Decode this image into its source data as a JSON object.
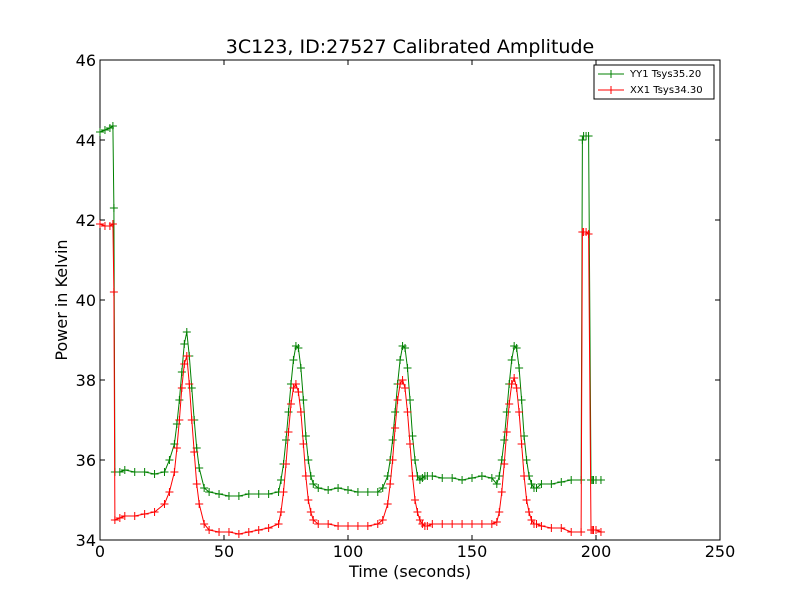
{
  "chart_data": {
    "type": "line",
    "title": "3C123, ID:27527 Calibrated Amplitude",
    "xlabel": "Time (seconds)",
    "ylabel": "Power in Kelvin",
    "xlim": [
      0,
      250
    ],
    "ylim": [
      34,
      46
    ],
    "xticks": [
      0,
      50,
      100,
      150,
      200,
      250
    ],
    "yticks": [
      34,
      36,
      38,
      40,
      42,
      44,
      46
    ],
    "grid": false,
    "legend_position": "top-right",
    "marker": "+",
    "series": [
      {
        "name": "YY1 Tsys35.20",
        "color": "#008000",
        "x": [
          0,
          2,
          4,
          5.2,
          5.6,
          6,
          8,
          10,
          14,
          18,
          22,
          26,
          28,
          30,
          31,
          32,
          33,
          34,
          35,
          36,
          37,
          38,
          39,
          40,
          42,
          44,
          48,
          52,
          56,
          60,
          64,
          68,
          72,
          73,
          74,
          75,
          76,
          77,
          78,
          79,
          80,
          81,
          82,
          83,
          84,
          85,
          86,
          88,
          92,
          96,
          100,
          104,
          108,
          112,
          114,
          116,
          117,
          118,
          119,
          120,
          121,
          122,
          123,
          124,
          125,
          126,
          127,
          128,
          129,
          130,
          131,
          132,
          134,
          138,
          142,
          146,
          150,
          154,
          158,
          160,
          161,
          162,
          163,
          164,
          165,
          166,
          167,
          168,
          169,
          170,
          171,
          172,
          173,
          174,
          175,
          176,
          178,
          182,
          186,
          190,
          194,
          194.5,
          195,
          196,
          197,
          198,
          198.5,
          199,
          200,
          202
        ],
        "y": [
          44.2,
          44.25,
          44.3,
          44.35,
          42.3,
          35.7,
          35.7,
          35.75,
          35.7,
          35.7,
          35.65,
          35.7,
          36.0,
          36.4,
          36.9,
          37.5,
          38.2,
          38.9,
          39.2,
          38.6,
          37.8,
          37.0,
          36.3,
          35.8,
          35.3,
          35.2,
          35.15,
          35.1,
          35.1,
          35.15,
          35.15,
          35.15,
          35.2,
          35.5,
          35.9,
          36.5,
          37.2,
          37.9,
          38.5,
          38.85,
          38.8,
          38.3,
          37.5,
          36.6,
          36.0,
          35.6,
          35.4,
          35.3,
          35.25,
          35.3,
          35.25,
          35.2,
          35.2,
          35.2,
          35.3,
          35.6,
          36.0,
          36.5,
          37.2,
          37.9,
          38.5,
          38.85,
          38.8,
          38.3,
          37.5,
          36.6,
          36.0,
          35.6,
          35.5,
          35.55,
          35.6,
          35.6,
          35.6,
          35.55,
          35.55,
          35.5,
          35.55,
          35.6,
          35.55,
          35.4,
          35.6,
          36.0,
          36.5,
          37.2,
          37.9,
          38.5,
          38.85,
          38.8,
          38.3,
          37.5,
          36.6,
          36.0,
          35.6,
          35.4,
          35.3,
          35.3,
          35.4,
          35.4,
          35.45,
          35.5,
          35.5,
          44.0,
          44.1,
          44.1,
          44.1,
          35.5,
          35.5,
          35.5,
          35.5,
          35.5
        ]
      },
      {
        "name": "XX1 Tsys34.30",
        "color": "#ff0000",
        "x": [
          0,
          2,
          4,
          5.2,
          5.6,
          6,
          8,
          10,
          14,
          18,
          22,
          26,
          28,
          30,
          31,
          32,
          33,
          34,
          35,
          36,
          37,
          38,
          39,
          40,
          42,
          44,
          48,
          52,
          56,
          60,
          64,
          68,
          72,
          73,
          74,
          75,
          76,
          77,
          78,
          79,
          80,
          81,
          82,
          83,
          84,
          85,
          86,
          88,
          92,
          96,
          100,
          104,
          108,
          112,
          114,
          116,
          117,
          118,
          119,
          120,
          121,
          122,
          123,
          124,
          125,
          126,
          127,
          128,
          129,
          130,
          131,
          132,
          134,
          138,
          142,
          146,
          150,
          154,
          158,
          160,
          161,
          162,
          163,
          164,
          165,
          166,
          167,
          168,
          169,
          170,
          171,
          172,
          173,
          174,
          175,
          176,
          178,
          182,
          186,
          190,
          194,
          194.5,
          195,
          196,
          197,
          198,
          198.5,
          199,
          200,
          202
        ],
        "y": [
          41.9,
          41.85,
          41.85,
          41.9,
          40.2,
          34.5,
          34.55,
          34.6,
          34.6,
          34.65,
          34.7,
          34.9,
          35.2,
          35.7,
          36.3,
          37.0,
          37.8,
          38.4,
          38.6,
          37.9,
          37.0,
          36.2,
          35.4,
          34.9,
          34.4,
          34.25,
          34.2,
          34.2,
          34.15,
          34.2,
          34.25,
          34.3,
          34.4,
          34.7,
          35.2,
          35.9,
          36.7,
          37.4,
          37.8,
          37.9,
          37.7,
          37.2,
          36.4,
          35.6,
          35.0,
          34.7,
          34.5,
          34.4,
          34.4,
          34.35,
          34.35,
          34.35,
          34.35,
          34.4,
          34.5,
          34.9,
          35.4,
          36.0,
          36.8,
          37.5,
          37.9,
          38.0,
          37.8,
          37.2,
          36.4,
          35.6,
          35.0,
          34.7,
          34.5,
          34.4,
          34.35,
          34.35,
          34.4,
          34.4,
          34.4,
          34.4,
          34.4,
          34.4,
          34.4,
          34.45,
          34.7,
          35.2,
          35.9,
          36.7,
          37.4,
          37.9,
          38.05,
          37.8,
          37.2,
          36.4,
          35.6,
          35.0,
          34.7,
          34.5,
          34.4,
          34.4,
          34.35,
          34.3,
          34.3,
          34.2,
          34.2,
          41.7,
          41.7,
          41.7,
          41.65,
          34.25,
          34.25,
          34.25,
          34.25,
          34.2
        ]
      }
    ]
  }
}
